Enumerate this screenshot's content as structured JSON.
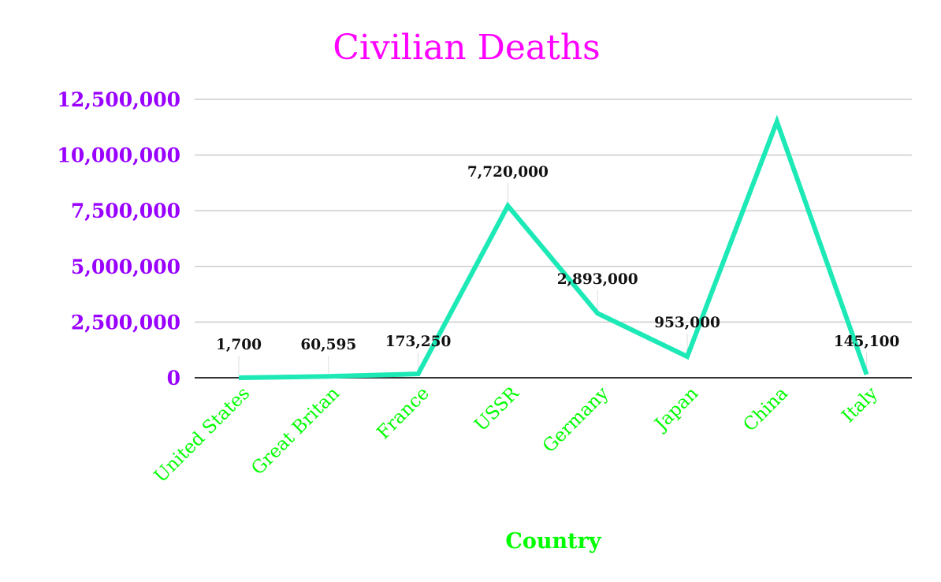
{
  "chart_data": {
    "type": "line",
    "title": "Civilian Deaths",
    "xlabel": "Country",
    "ylabel": "",
    "categories": [
      "United States",
      "Great Britan",
      "France",
      "USSR",
      "Germany",
      "Japan",
      "China",
      "Italy"
    ],
    "series": [
      {
        "values": [
          1700,
          60595,
          173250,
          7720000,
          2893000,
          953000,
          11500000,
          145100
        ],
        "data_labels": [
          "1,700",
          "60,595",
          "173,250",
          "7,720,000",
          "2,893,000",
          "953,000",
          "",
          "145,100"
        ]
      }
    ],
    "ylim": [
      0,
      12500000
    ],
    "yticks": [
      0,
      2500000,
      5000000,
      7500000,
      10000000,
      12500000
    ],
    "ytick_labels": [
      "0",
      "2,500,000",
      "5,000,000",
      "7,500,000",
      "10,000,000",
      "12,500,000"
    ],
    "grid": true,
    "legend": "none",
    "colors": {
      "title": "#ff00ff",
      "line": "#1de9b6",
      "ytick": "#9900ff",
      "xtick": "#00ff00",
      "xlabel": "#00ff00",
      "grid": "#cccccc",
      "axis": "#333333",
      "data_label": "#111111"
    }
  }
}
